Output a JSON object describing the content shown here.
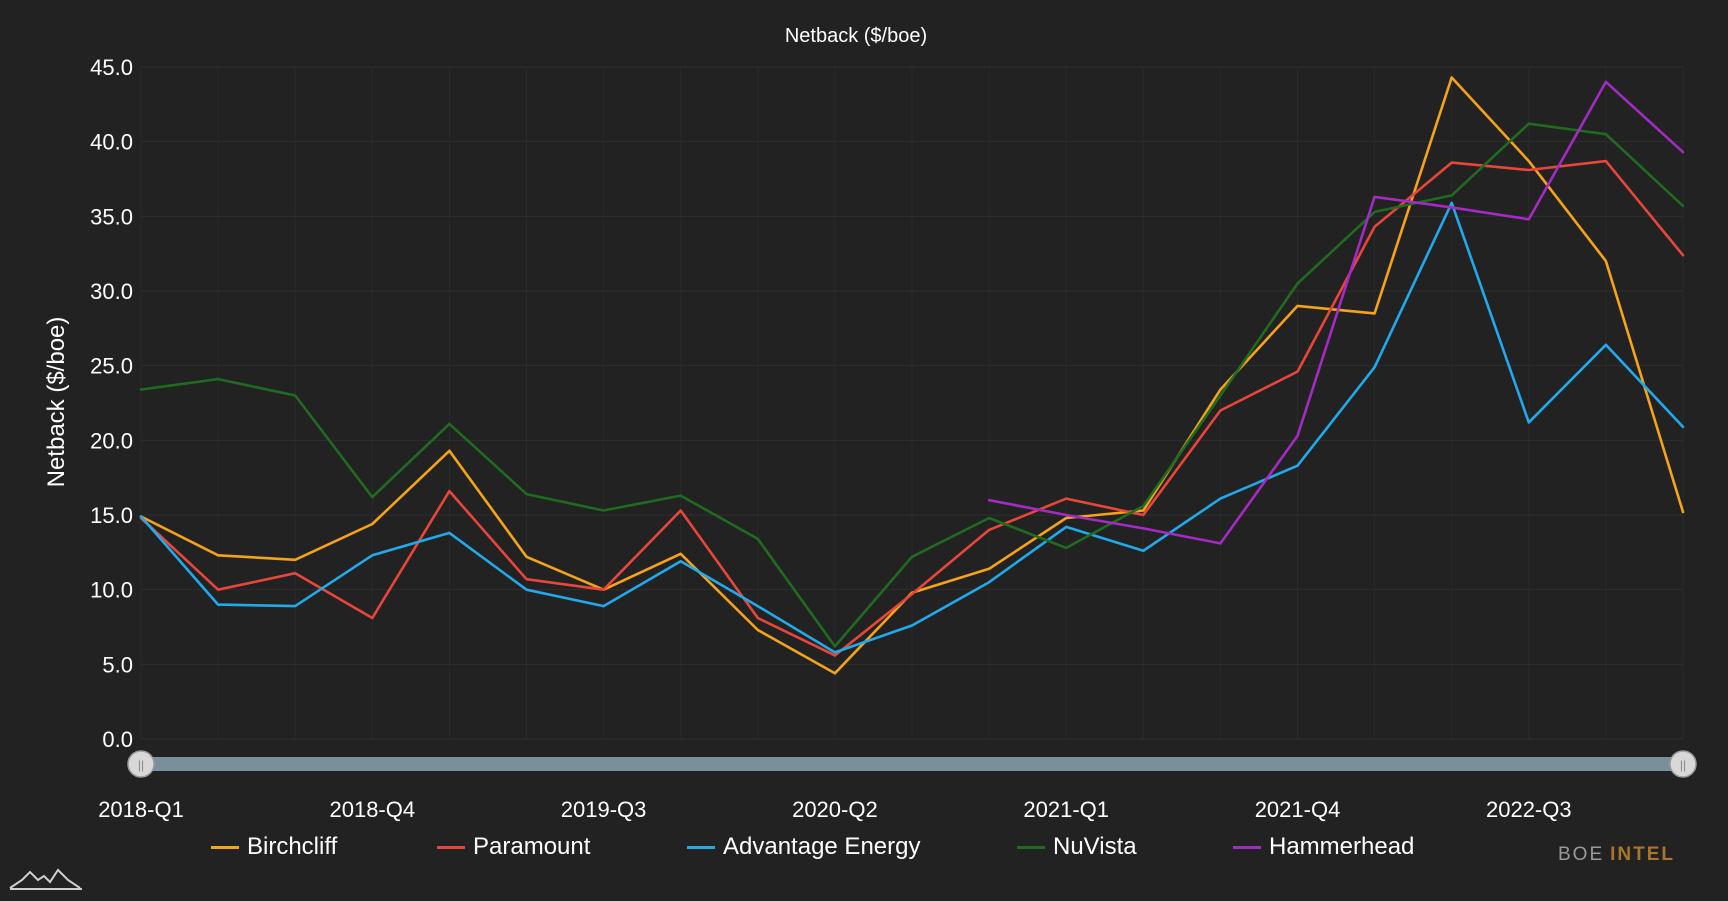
{
  "chart_data": {
    "type": "line",
    "title": "Netback ($/boe)",
    "ylabel": "Netback ($/boe)",
    "xlabel": "",
    "ylim": [
      0,
      45
    ],
    "yticks": [
      "0.0",
      "5.0",
      "10.0",
      "15.0",
      "20.0",
      "25.0",
      "30.0",
      "35.0",
      "40.0",
      "45.0"
    ],
    "x": [
      "2018-Q1",
      "2018-Q2",
      "2018-Q3",
      "2018-Q4",
      "2019-Q1",
      "2019-Q2",
      "2019-Q3",
      "2019-Q4",
      "2020-Q1",
      "2020-Q2",
      "2020-Q3",
      "2020-Q4",
      "2021-Q1",
      "2021-Q2",
      "2021-Q3",
      "2021-Q4",
      "2022-Q1",
      "2022-Q2",
      "2022-Q3",
      "2022-Q4",
      "2023-Q1"
    ],
    "xtick_labels": [
      "2018-Q1",
      "2018-Q4",
      "2019-Q3",
      "2020-Q2",
      "2021-Q1",
      "2021-Q4",
      "2022-Q3"
    ],
    "grid": true,
    "legend_position": "bottom",
    "series": [
      {
        "name": "Birchcliff",
        "color": "#f5a31a",
        "values": [
          14.9,
          12.3,
          12.0,
          14.4,
          19.3,
          12.2,
          10.0,
          12.4,
          7.3,
          4.4,
          9.8,
          11.4,
          14.8,
          15.3,
          23.4,
          29.0,
          28.5,
          44.3,
          38.7,
          32.0,
          15.2
        ]
      },
      {
        "name": "Paramount",
        "color": "#e8463a",
        "values": [
          14.8,
          10.0,
          11.1,
          8.1,
          16.6,
          10.7,
          10.0,
          15.3,
          8.1,
          5.6,
          9.7,
          14.0,
          16.1,
          15.0,
          22.0,
          24.6,
          34.3,
          38.6,
          38.1,
          38.7,
          32.4
        ]
      },
      {
        "name": "Advantage Energy",
        "color": "#21a9ec",
        "values": [
          14.9,
          9.0,
          8.9,
          12.3,
          13.8,
          10.0,
          8.9,
          11.9,
          8.9,
          5.8,
          7.6,
          10.5,
          14.2,
          12.6,
          16.1,
          18.3,
          24.9,
          35.9,
          21.2,
          26.4,
          20.9
        ]
      },
      {
        "name": "NuVista",
        "color": "#1f6b1f",
        "values": [
          23.4,
          24.1,
          23.0,
          16.2,
          21.1,
          16.4,
          15.3,
          16.3,
          13.4,
          6.2,
          12.2,
          14.8,
          12.8,
          15.6,
          23.0,
          30.5,
          35.3,
          36.4,
          41.2,
          40.5,
          35.7
        ]
      },
      {
        "name": "Hammerhead",
        "color": "#a32bc4",
        "values": [
          null,
          null,
          null,
          null,
          null,
          null,
          null,
          null,
          null,
          null,
          null,
          16.0,
          15.0,
          14.1,
          13.1,
          20.3,
          36.3,
          35.6,
          34.8,
          44.0,
          39.3
        ]
      }
    ]
  },
  "range_slider": {
    "start_handle": "||",
    "end_handle": "||"
  },
  "brand": {
    "boe": "BOE",
    "intel": "INTEL"
  },
  "icons": {
    "logo": "mountain-logo-icon"
  }
}
